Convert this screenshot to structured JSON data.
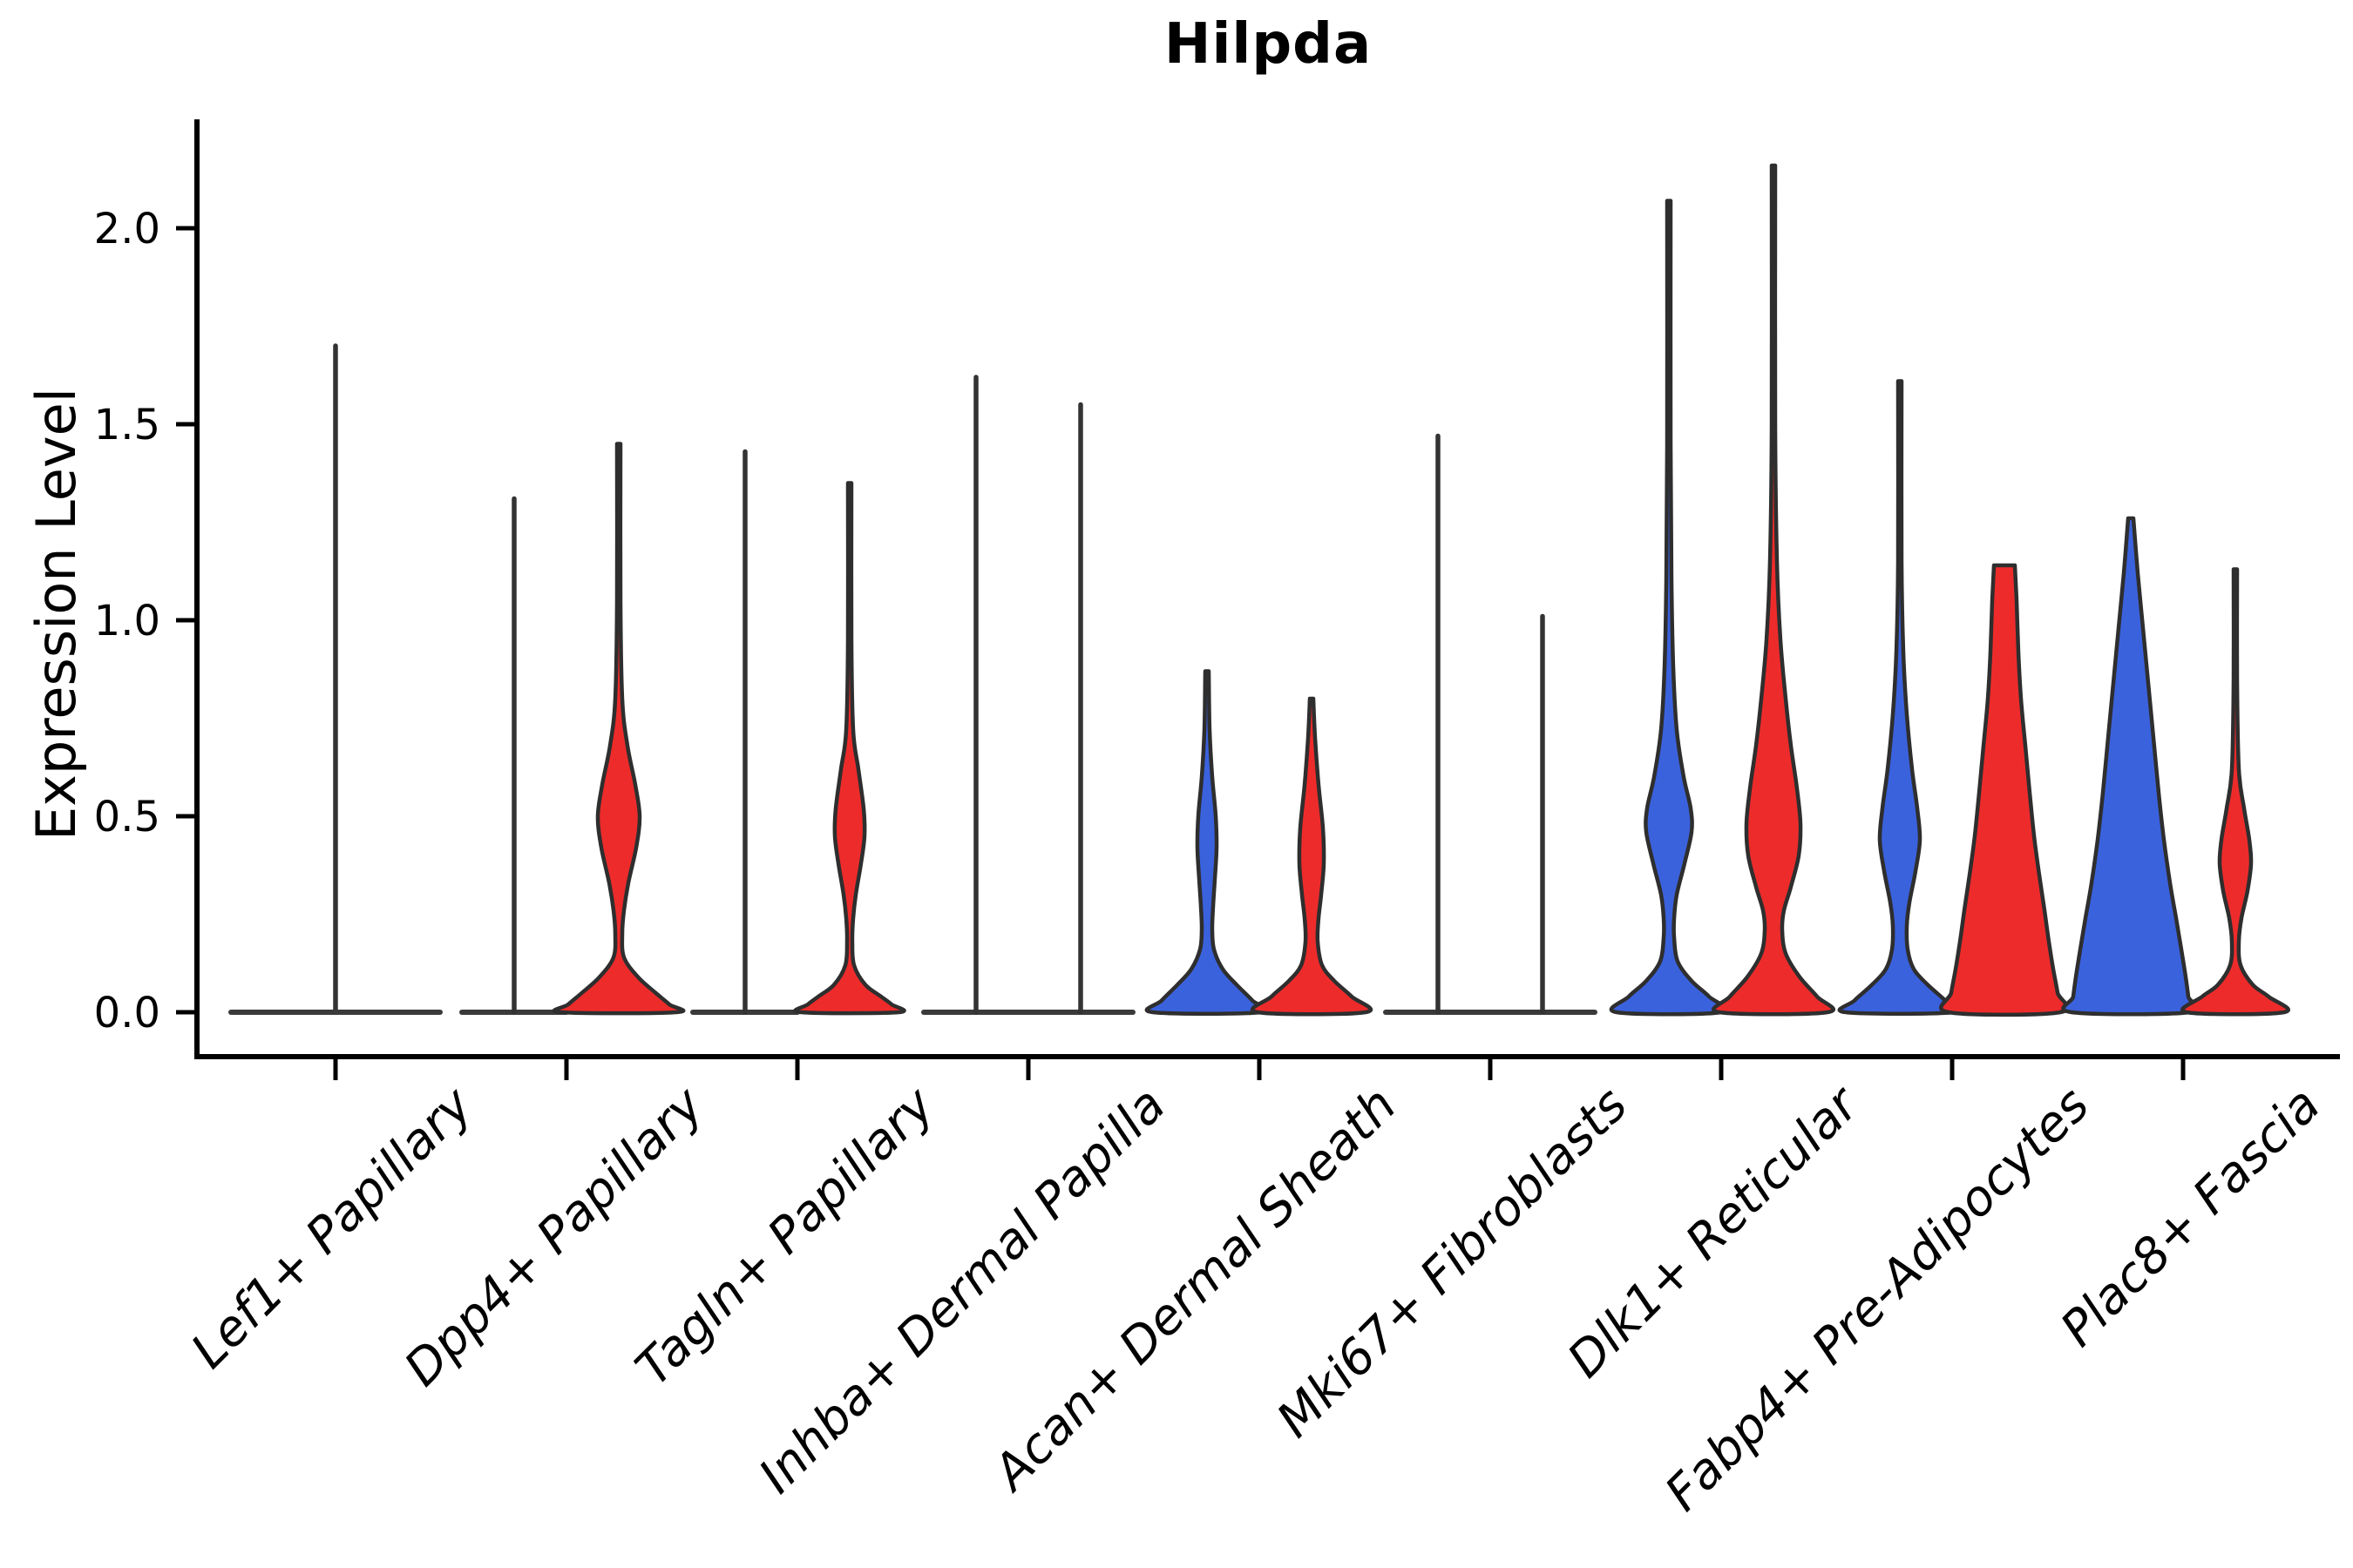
{
  "title": "Hilpda",
  "y_axis": {
    "label": "Expression Level",
    "tick_labels": [
      "0.0",
      "0.5",
      "1.0",
      "1.5",
      "2.0"
    ]
  },
  "colors": {
    "blue": "#3B62DD",
    "red": "#EE2B2B",
    "outline": "#2E2E2E",
    "spike": "#333333",
    "baseline": "#3A3A3A",
    "axis": "#000000"
  },
  "chart_data": {
    "type": "violin",
    "title": "Hilpda",
    "xlabel": "",
    "ylabel": "Expression Level",
    "ylim": [
      0,
      2.28
    ],
    "yticks": [
      0.0,
      0.5,
      1.0,
      1.5,
      2.0
    ],
    "grid": false,
    "legend": "none",
    "hues": [
      "blue",
      "red"
    ],
    "profile_units": "value_vs_halfwidth_px",
    "categories": [
      "Lef1+ Papillary",
      "Dpp4+ Papillary",
      "Tagln+ Papillary",
      "Inhba+ Dermal Papilla",
      "Acan+ Dermal Sheath",
      "Mki67+ Fibroblasts",
      "Dlk1+ Reticular",
      "Fabp4+ Pre-Adipocytes",
      "Plac8+ Fascia"
    ],
    "groups": [
      {
        "category": "Lef1+ Papillary",
        "violins": [
          {
            "hue": "blue",
            "type": "spike",
            "dodge": -1,
            "spike_at_center": true,
            "max": 1.7
          },
          {
            "hue": "red",
            "type": "flat",
            "dodge": 1,
            "max": 0
          }
        ]
      },
      {
        "category": "Dpp4+ Papillary",
        "violins": [
          {
            "hue": "blue",
            "type": "spike",
            "dodge": -1,
            "max": 1.31
          },
          {
            "hue": "red",
            "type": "body",
            "dodge": 1,
            "max": 1.45,
            "profile": [
              [
                1.45,
                2
              ],
              [
                1.05,
                2
              ],
              [
                0.8,
                4
              ],
              [
                0.68,
                10
              ],
              [
                0.58,
                19
              ],
              [
                0.5,
                24
              ],
              [
                0.42,
                20
              ],
              [
                0.33,
                11
              ],
              [
                0.26,
                6
              ],
              [
                0.2,
                4
              ],
              [
                0.14,
                6
              ],
              [
                0.09,
                22
              ],
              [
                0.05,
                42
              ],
              [
                0.02,
                58
              ],
              [
                0,
                66
              ]
            ]
          }
        ]
      },
      {
        "category": "Tagln+ Papillary",
        "violins": [
          {
            "hue": "blue",
            "type": "spike",
            "dodge": -1,
            "max": 1.43
          },
          {
            "hue": "red",
            "type": "body",
            "dodge": 1,
            "max": 1.35,
            "profile": [
              [
                1.35,
                2
              ],
              [
                0.95,
                2
              ],
              [
                0.72,
                4
              ],
              [
                0.62,
                10
              ],
              [
                0.52,
                16
              ],
              [
                0.45,
                17
              ],
              [
                0.38,
                13
              ],
              [
                0.3,
                7
              ],
              [
                0.24,
                4
              ],
              [
                0.18,
                3
              ],
              [
                0.12,
                5
              ],
              [
                0.07,
                18
              ],
              [
                0.04,
                36
              ],
              [
                0.02,
                48
              ],
              [
                0,
                56
              ]
            ]
          }
        ]
      },
      {
        "category": "Inhba+ Dermal Papilla",
        "violins": [
          {
            "hue": "blue",
            "type": "spike",
            "dodge": -1,
            "max": 1.62
          },
          {
            "hue": "red",
            "type": "spike",
            "dodge": 1,
            "max": 1.55
          }
        ]
      },
      {
        "category": "Acan+ Dermal Sheath",
        "violins": [
          {
            "hue": "blue",
            "type": "body",
            "dodge": -1,
            "max": 0.87,
            "profile": [
              [
                0.87,
                2
              ],
              [
                0.72,
                3
              ],
              [
                0.6,
                6
              ],
              [
                0.5,
                10
              ],
              [
                0.42,
                11
              ],
              [
                0.34,
                9
              ],
              [
                0.27,
                7
              ],
              [
                0.21,
                6
              ],
              [
                0.16,
                8
              ],
              [
                0.11,
                18
              ],
              [
                0.07,
                34
              ],
              [
                0.03,
                52
              ],
              [
                0,
                62
              ]
            ]
          },
          {
            "hue": "red",
            "type": "body",
            "dodge": 1,
            "max": 0.8,
            "profile": [
              [
                0.8,
                2
              ],
              [
                0.7,
                4
              ],
              [
                0.58,
                8
              ],
              [
                0.47,
                13
              ],
              [
                0.38,
                14
              ],
              [
                0.3,
                11
              ],
              [
                0.24,
                8
              ],
              [
                0.18,
                7
              ],
              [
                0.12,
                12
              ],
              [
                0.08,
                26
              ],
              [
                0.04,
                46
              ],
              [
                0,
                62
              ]
            ]
          }
        ]
      },
      {
        "category": "Mki67+ Fibroblasts",
        "violins": [
          {
            "hue": "blue",
            "type": "spike",
            "dodge": -1,
            "max": 1.47
          },
          {
            "hue": "red",
            "type": "spike",
            "dodge": 1,
            "max": 1.01
          }
        ]
      },
      {
        "category": "Dlk1+ Reticular",
        "violins": [
          {
            "hue": "blue",
            "type": "body",
            "dodge": -1,
            "max": 2.07,
            "profile": [
              [
                2.07,
                2
              ],
              [
                1.45,
                2
              ],
              [
                1.1,
                3
              ],
              [
                0.88,
                5
              ],
              [
                0.72,
                9
              ],
              [
                0.6,
                17
              ],
              [
                0.52,
                25
              ],
              [
                0.46,
                26
              ],
              [
                0.38,
                18
              ],
              [
                0.3,
                9
              ],
              [
                0.24,
                6
              ],
              [
                0.19,
                6
              ],
              [
                0.13,
                10
              ],
              [
                0.08,
                26
              ],
              [
                0.04,
                46
              ],
              [
                0,
                60
              ]
            ]
          },
          {
            "hue": "red",
            "type": "body",
            "dodge": 1,
            "max": 2.16,
            "profile": [
              [
                2.16,
                2
              ],
              [
                1.5,
                2
              ],
              [
                1.15,
                4
              ],
              [
                0.95,
                8
              ],
              [
                0.8,
                14
              ],
              [
                0.68,
                20
              ],
              [
                0.57,
                27
              ],
              [
                0.48,
                31
              ],
              [
                0.4,
                29
              ],
              [
                0.32,
                20
              ],
              [
                0.26,
                12
              ],
              [
                0.21,
                10
              ],
              [
                0.15,
                14
              ],
              [
                0.09,
                30
              ],
              [
                0.04,
                50
              ],
              [
                0,
                62
              ]
            ]
          }
        ]
      },
      {
        "category": "Fabp4+ Pre-Adipocytes",
        "violins": [
          {
            "hue": "blue",
            "type": "body",
            "dodge": -1,
            "max": 1.61,
            "profile": [
              [
                1.61,
                2
              ],
              [
                1.15,
                2
              ],
              [
                0.92,
                4
              ],
              [
                0.76,
                8
              ],
              [
                0.62,
                14
              ],
              [
                0.52,
                20
              ],
              [
                0.44,
                23
              ],
              [
                0.36,
                18
              ],
              [
                0.28,
                11
              ],
              [
                0.22,
                8
              ],
              [
                0.16,
                9
              ],
              [
                0.11,
                16
              ],
              [
                0.07,
                32
              ],
              [
                0.03,
                52
              ],
              [
                0,
                62
              ]
            ]
          },
          {
            "hue": "red",
            "type": "body",
            "dodge": 1,
            "max": 1.14,
            "profile": [
              [
                1.14,
                12
              ],
              [
                1.05,
                14
              ],
              [
                0.92,
                16
              ],
              [
                0.8,
                19
              ],
              [
                0.68,
                24
              ],
              [
                0.56,
                29
              ],
              [
                0.45,
                34
              ],
              [
                0.35,
                40
              ],
              [
                0.26,
                46
              ],
              [
                0.18,
                51
              ],
              [
                0.11,
                56
              ],
              [
                0.05,
                61
              ],
              [
                0,
                64
              ]
            ]
          }
        ]
      },
      {
        "category": "Plac8+ Fascia",
        "violins": [
          {
            "hue": "blue",
            "type": "body",
            "dodge": -1,
            "max": 1.26,
            "profile": [
              [
                1.26,
                3
              ],
              [
                1.12,
                8
              ],
              [
                0.98,
                14
              ],
              [
                0.84,
                20
              ],
              [
                0.7,
                26
              ],
              [
                0.56,
                32
              ],
              [
                0.44,
                38
              ],
              [
                0.33,
                45
              ],
              [
                0.24,
                52
              ],
              [
                0.16,
                58
              ],
              [
                0.09,
                63
              ],
              [
                0.04,
                66
              ],
              [
                0,
                68
              ]
            ]
          },
          {
            "hue": "red",
            "type": "body",
            "dodge": 1,
            "max": 1.13,
            "profile": [
              [
                1.13,
                2
              ],
              [
                0.85,
                2
              ],
              [
                0.62,
                4
              ],
              [
                0.52,
                10
              ],
              [
                0.44,
                16
              ],
              [
                0.38,
                18
              ],
              [
                0.31,
                14
              ],
              [
                0.24,
                7
              ],
              [
                0.18,
                4
              ],
              [
                0.12,
                6
              ],
              [
                0.07,
                20
              ],
              [
                0.04,
                38
              ],
              [
                0,
                56
              ]
            ]
          }
        ]
      }
    ]
  }
}
